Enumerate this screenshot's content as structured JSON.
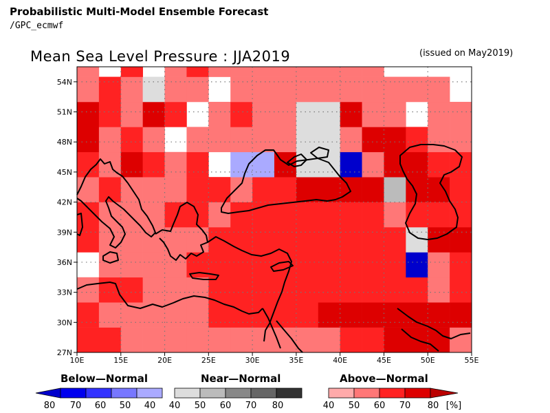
{
  "header": {
    "line1": "Probabilistic Multi-Model Ensemble Forecast",
    "line2": "/GPC_ecmwf"
  },
  "map": {
    "title": "Mean Sea Level Pressure : JJA2019",
    "issued": "(issued on May2019)",
    "lon_labels": [
      "10E",
      "15E",
      "20E",
      "25E",
      "30E",
      "35E",
      "40E",
      "45E",
      "50E",
      "55E"
    ],
    "lat_labels": [
      "54N",
      "51N",
      "48N",
      "45N",
      "42N",
      "39N",
      "36N",
      "33N",
      "30N",
      "27N"
    ],
    "lon_range": [
      10,
      55
    ],
    "lat_range": [
      27,
      55.5
    ],
    "grid": {
      "lon0": 10,
      "lat0": 27,
      "dlon": 2.5,
      "dlat": 2.5,
      "codes": "0 = no dominant category, A4/A5/A6/A7/A8 = above-normal 40/50/60/70/80%, B4/B5/B8 = below-normal 40/50/80%, N4/N5 = near-normal 40/50%",
      "rows": [
        [
          "A6",
          "A6",
          "A5",
          "A5",
          "A5",
          "A5",
          "A5",
          "A5",
          "A5",
          "A5",
          "A5",
          "A5",
          "A6",
          "A6",
          "A7",
          "A7",
          "A7",
          "A5"
        ],
        [
          "A6",
          "A5",
          "A5",
          "A5",
          "A5",
          "A5",
          "A6",
          "A6",
          "A6",
          "A6",
          "A6",
          "A7",
          "A7",
          "A7",
          "A7",
          "A7",
          "A7",
          "A7"
        ],
        [
          "A5",
          "A6",
          "A6",
          "A5",
          "A5",
          "A5",
          "A6",
          "A6",
          "A6",
          "A6",
          "A6",
          "A6",
          "A6",
          "A6",
          "A6",
          "A6",
          "A5",
          "A6"
        ],
        [
          "0",
          "A5",
          "A5",
          "A5",
          "A5",
          "A6",
          "A6",
          "A6",
          "A6",
          "A6",
          "A6",
          "A6",
          "A6",
          "A6",
          "A6",
          "B8",
          "A5",
          "A6"
        ],
        [
          "A6",
          "A5",
          "A5",
          "A5",
          "A5",
          "A5",
          "A6",
          "A6",
          "A6",
          "A6",
          "A6",
          "A6",
          "A6",
          "A6",
          "A6",
          "N4",
          "A7",
          "A7"
        ],
        [
          "A6",
          "A5",
          "A5",
          "A5",
          "A6",
          "A6",
          "A5",
          "A6",
          "A6",
          "A6",
          "A6",
          "A6",
          "A6",
          "A6",
          "A5",
          "A6",
          "A6",
          "A6"
        ],
        [
          "A5",
          "A6",
          "A5",
          "A5",
          "A5",
          "A6",
          "A6",
          "A5",
          "A6",
          "A6",
          "A7",
          "A7",
          "A7",
          "A7",
          "N5",
          "A7",
          "A7",
          "A6"
        ],
        [
          "A6",
          "A5",
          "A7",
          "A6",
          "A5",
          "A6",
          "0",
          "B4",
          "B4",
          "A7",
          "N4",
          "N4",
          "B8",
          "A5",
          "A7",
          "A7",
          "A6",
          "A6"
        ],
        [
          "A7",
          "A5",
          "A6",
          "A5",
          "0",
          "A5",
          "A5",
          "A5",
          "A5",
          "A5",
          "N4",
          "N4",
          "A5",
          "A7",
          "A7",
          "A6",
          "A5",
          "A5"
        ],
        [
          "A7",
          "A6",
          "A5",
          "A7",
          "A6",
          "0",
          "A5",
          "A6",
          "A5",
          "A5",
          "N4",
          "N4",
          "A7",
          "A5",
          "A5",
          "0",
          "A5",
          "A5"
        ],
        [
          "A5",
          "A6",
          "A5",
          "N4",
          "A5",
          "A5",
          "0",
          "A5",
          "A5",
          "A5",
          "A5",
          "A5",
          "A5",
          "A5",
          "A5",
          "A5",
          "A5",
          "0"
        ],
        [
          "A5",
          "0",
          "A6",
          "0",
          "A5",
          "A6",
          "A5",
          "A5",
          "A5",
          "A5",
          "A5",
          "A5",
          "A5",
          "A5",
          "0",
          "0",
          "0",
          "0"
        ],
        [
          "A5",
          "A5",
          "A5",
          "A5",
          "A5",
          "A5",
          "A5",
          "A5",
          "A5",
          "A5",
          "A5",
          "A5",
          "A5",
          "A5",
          "0",
          "0",
          "0",
          "B4"
        ],
        [
          "A5",
          "A5",
          "A5",
          "A5",
          "A5",
          "A5",
          "A5",
          "A5",
          "A5",
          "A5",
          "A5",
          "A5",
          "A5",
          "A5",
          "A5",
          "A5",
          "A5",
          "B4"
        ],
        [
          "A5",
          "A5",
          "A5",
          "A5",
          "A5",
          "A5",
          "A6",
          "A5",
          "A6",
          "A6",
          "A6",
          "A6",
          "A5",
          "A5",
          "A5",
          "A5",
          "A5",
          "A5"
        ]
      ]
    },
    "colors": {
      "A4": "#ffaaaa",
      "A5": "#ff7777",
      "A6": "#ff2222",
      "A7": "#dd0000",
      "A8": "#bb0000",
      "B4": "#aaaaff",
      "B5": "#7777ff",
      "B8": "#0000cc",
      "N4": "#dddddd",
      "N5": "#bbbbbb",
      "N6": "#888888",
      "N7": "#666666",
      "N8": "#333333",
      "coast": "#000000",
      "dotgrid": "#777777"
    }
  },
  "legend": {
    "below": {
      "title": "Below—Normal",
      "labels": [
        "80",
        "70",
        "60",
        "50",
        "40"
      ],
      "colors": [
        "#0000cc",
        "#0000ee",
        "#3333ff",
        "#7777ff",
        "#aaaaff"
      ]
    },
    "near": {
      "title": "Near—Normal",
      "labels": [
        "40",
        "50",
        "60",
        "70",
        "80"
      ],
      "colors": [
        "#dddddd",
        "#bbbbbb",
        "#888888",
        "#666666",
        "#333333"
      ]
    },
    "above": {
      "title": "Above—Normal",
      "labels": [
        "40",
        "50",
        "60",
        "70",
        "80"
      ],
      "colors": [
        "#ffaaaa",
        "#ff7777",
        "#ff2222",
        "#dd0000",
        "#bb0000"
      ]
    },
    "unit": "[%]"
  }
}
